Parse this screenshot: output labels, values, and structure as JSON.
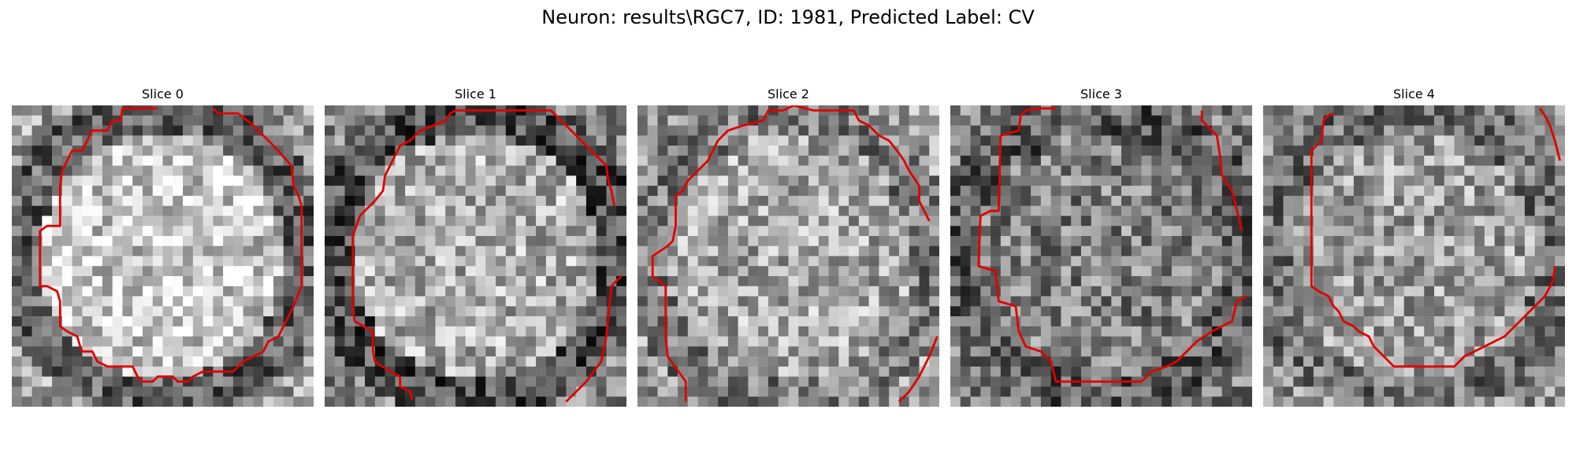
{
  "figure": {
    "title": "Neuron: results\\RGC7, ID: 1981, Predicted Label: CV"
  },
  "colors": {
    "contour": "#e00000"
  },
  "panels": [
    {
      "title": "Slice 0",
      "seed": 11,
      "center_brightness": 0.78,
      "edge_brightness": 0.38
    },
    {
      "title": "Slice 1",
      "seed": 23,
      "center_brightness": 0.68,
      "edge_brightness": 0.3
    },
    {
      "title": "Slice 2",
      "seed": 37,
      "center_brightness": 0.66,
      "edge_brightness": 0.48
    },
    {
      "title": "Slice 3",
      "seed": 41,
      "center_brightness": 0.5,
      "edge_brightness": 0.36
    },
    {
      "title": "Slice 4",
      "seed": 53,
      "center_brightness": 0.62,
      "edge_brightness": 0.44
    }
  ]
}
